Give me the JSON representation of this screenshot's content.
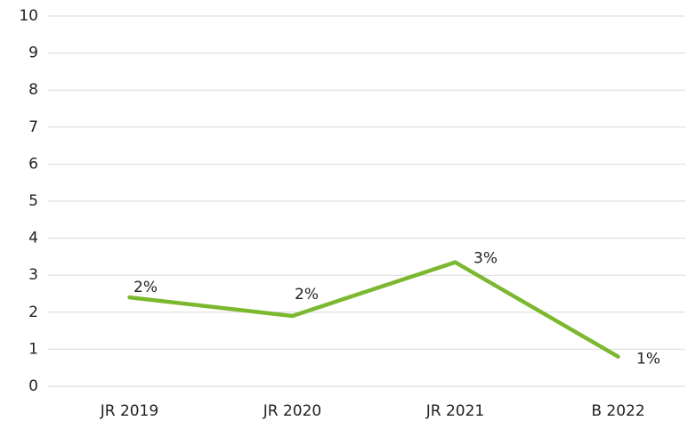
{
  "chart_data": {
    "type": "line",
    "categories": [
      "JR 2019",
      "JR 2020",
      "JR 2021",
      "B 2022"
    ],
    "series": [
      {
        "name": "",
        "color": "#7cb82f",
        "values": [
          2.4,
          1.9,
          3.35,
          0.8
        ],
        "value_labels": [
          "2%",
          "2%",
          "3%",
          "1%"
        ]
      }
    ],
    "ylim": [
      0,
      10
    ],
    "yticks": [
      0,
      1,
      2,
      3,
      4,
      5,
      6,
      7,
      8,
      9,
      10
    ],
    "grid": true
  }
}
